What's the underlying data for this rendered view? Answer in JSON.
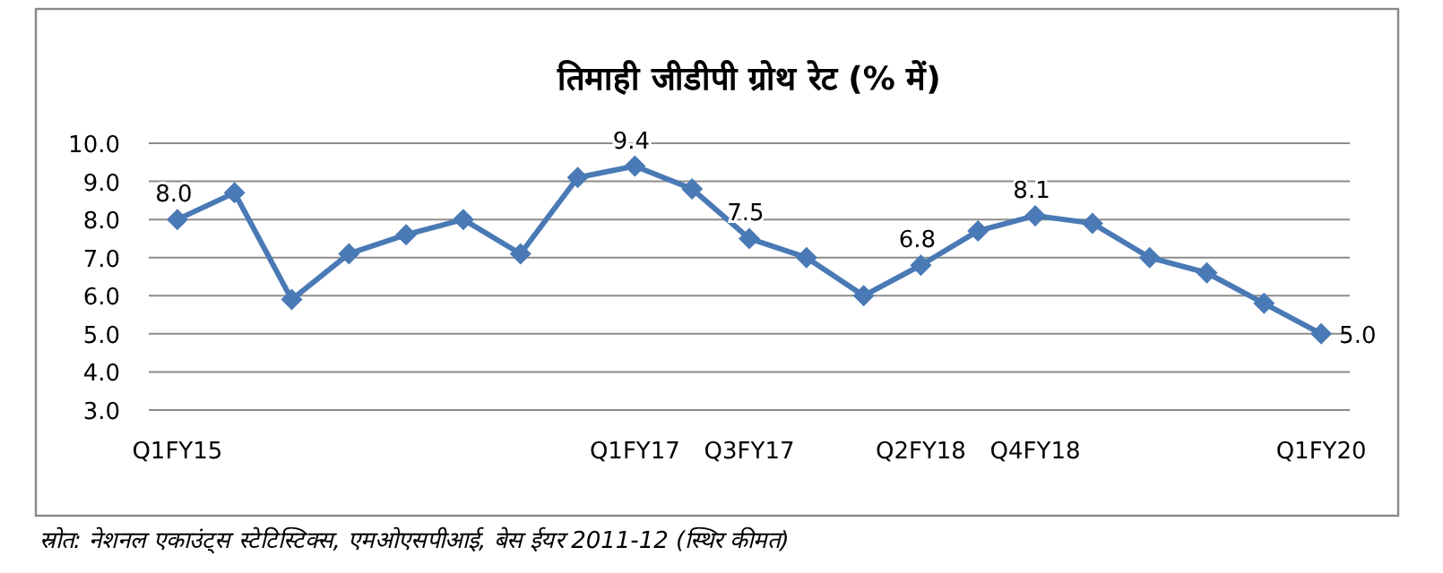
{
  "chart_data": {
    "type": "line",
    "title": "तिमाही जीडीपी ग्रोथ रेट (% में)",
    "categories": [
      "Q1FY15",
      null,
      null,
      null,
      null,
      null,
      null,
      null,
      "Q1FY17",
      null,
      "Q3FY17",
      null,
      null,
      "Q2FY18",
      null,
      "Q4FY18",
      null,
      null,
      null,
      null,
      "Q1FY20"
    ],
    "values": [
      8.0,
      8.7,
      5.9,
      7.1,
      7.6,
      8.0,
      7.1,
      9.1,
      9.4,
      8.8,
      7.5,
      7.0,
      6.0,
      6.8,
      7.7,
      8.1,
      7.9,
      7.0,
      6.6,
      5.8,
      5.0
    ],
    "value_labels": [
      "8.0",
      null,
      null,
      null,
      null,
      null,
      null,
      null,
      "9.4",
      null,
      "7.5",
      null,
      null,
      "6.8",
      null,
      "8.1",
      null,
      null,
      null,
      null,
      "5.0"
    ],
    "color": "#4a7ab5",
    "ylim": [
      3,
      10
    ],
    "yticks": [
      {
        "value": 3,
        "label": "3.0"
      },
      {
        "value": 4,
        "label": "4.0"
      },
      {
        "value": 5,
        "label": "5.0"
      },
      {
        "value": 6,
        "label": "6.0"
      },
      {
        "value": 7,
        "label": "7.0"
      },
      {
        "value": 8,
        "label": "8.0"
      },
      {
        "value": 9,
        "label": "9.0"
      },
      {
        "value": 10,
        "label": "10.0"
      }
    ],
    "grid": "y",
    "marker": "diamond",
    "line_style": "solid",
    "annotations": [
      "स्रोत: नेशनल एकाउंट्स स्टेटिस्टिक्स, एमओएसपीआई, बेस ईयर 2011-12 (स्थिर कीमत)"
    ]
  }
}
